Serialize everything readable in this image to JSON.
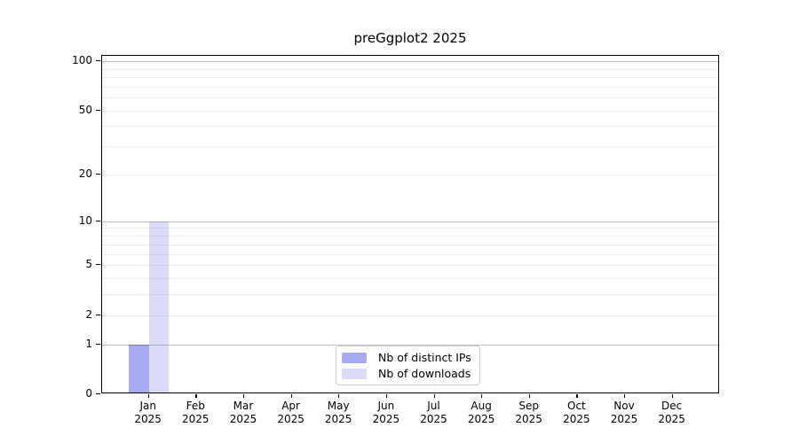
{
  "window": {
    "background": "#ffffff"
  },
  "chart_data": {
    "type": "bar",
    "title": "preGgplot2 2025",
    "year": "2025",
    "categories": [
      "Jan",
      "Feb",
      "Mar",
      "Apr",
      "May",
      "Jun",
      "Jul",
      "Aug",
      "Sep",
      "Oct",
      "Nov",
      "Dec"
    ],
    "series": [
      {
        "name": "Nb of distinct IPs",
        "color": "#a9a9f2",
        "values": [
          1,
          0,
          0,
          0,
          0,
          0,
          0,
          0,
          0,
          0,
          0,
          0
        ]
      },
      {
        "name": "Nb of downloads",
        "color": "#dbdbf8",
        "values": [
          10,
          0,
          0,
          0,
          0,
          0,
          0,
          0,
          0,
          0,
          0,
          0
        ]
      }
    ],
    "xlabel": "",
    "ylabel": "",
    "yscale": "log1p",
    "ylim": [
      0,
      108
    ],
    "yticks": [
      0,
      1,
      2,
      5,
      10,
      20,
      50,
      100
    ],
    "grid": {
      "minor": [
        2,
        3,
        4,
        5,
        6,
        7,
        8,
        9,
        20,
        30,
        40,
        50,
        60,
        70,
        80,
        90
      ],
      "major": [
        1,
        10,
        100
      ],
      "minor_color": "rgba(0,0,0,0.07)",
      "major_color": "rgba(0,0,0,0.26)"
    },
    "legend": {
      "position": "lower center",
      "border_color": "#cccccc",
      "background": "#ffffff"
    }
  }
}
